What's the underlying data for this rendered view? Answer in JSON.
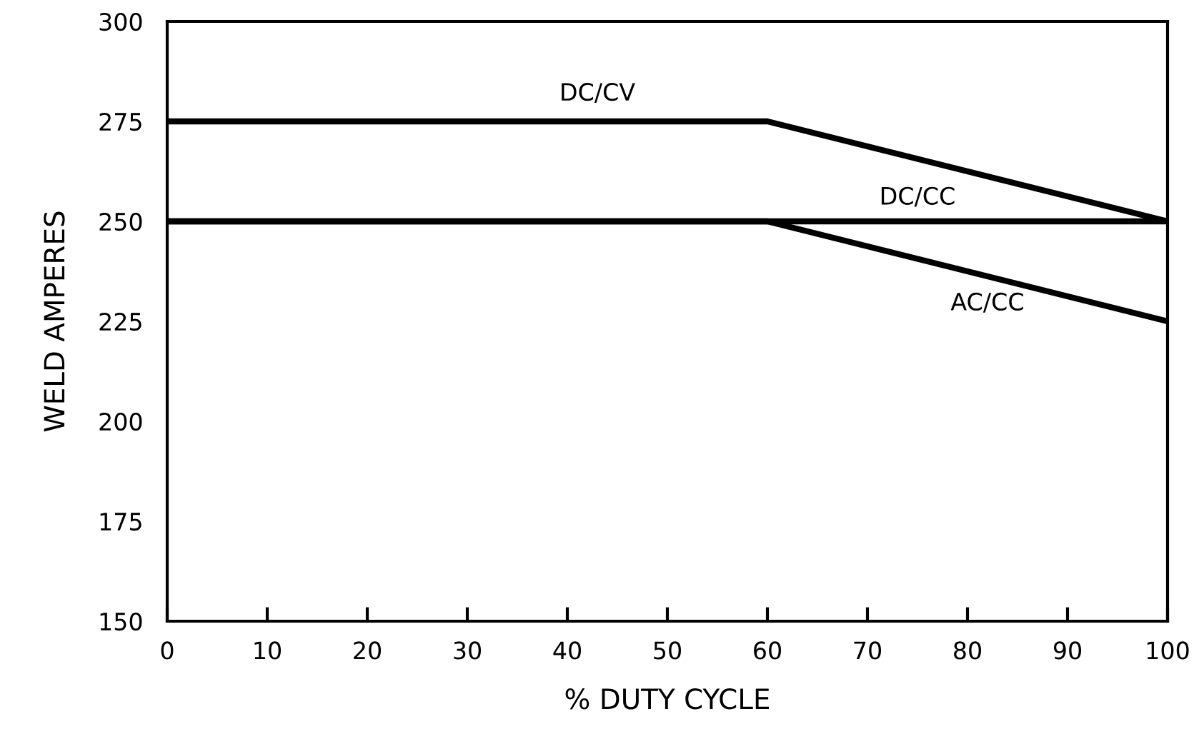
{
  "chart_data": {
    "type": "line",
    "xlabel": "% DUTY CYCLE",
    "ylabel": "WELD AMPERES",
    "series": [
      {
        "name": "DC/CV",
        "color": "#000000",
        "x": [
          0,
          60,
          100
        ],
        "values": [
          275,
          275,
          250
        ]
      },
      {
        "name": "DC/CC",
        "color": "#000000",
        "x": [
          0,
          100
        ],
        "values": [
          250,
          250
        ]
      },
      {
        "name": "AC/CC",
        "color": "#000000",
        "x": [
          0,
          60,
          100
        ],
        "values": [
          250,
          250,
          225
        ]
      }
    ],
    "xlim": [
      0,
      100
    ],
    "xticks": [
      0,
      10,
      20,
      30,
      40,
      50,
      60,
      70,
      80,
      90,
      100
    ],
    "ylim": [
      150,
      300
    ],
    "yticks": [
      150,
      175,
      200,
      225,
      250,
      275,
      300
    ],
    "grid": false,
    "legend": false,
    "marker": "none",
    "line_style": "solid"
  }
}
